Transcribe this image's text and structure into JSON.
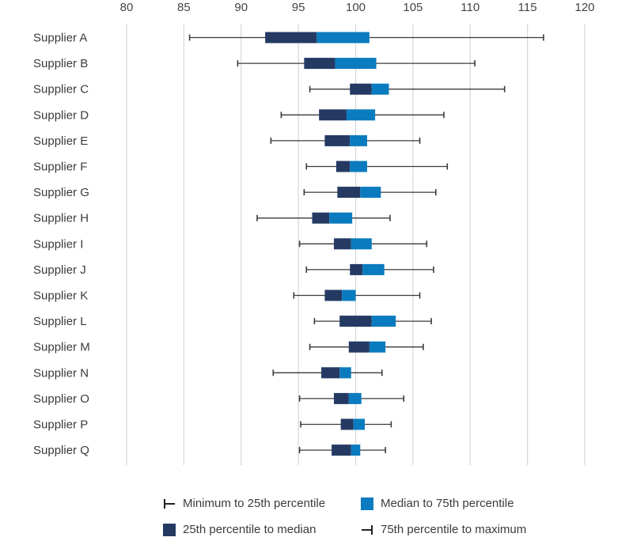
{
  "chart_data": {
    "type": "boxplot",
    "orientation": "horizontal",
    "title": "",
    "xlabel": "",
    "ylabel": "",
    "xlim": [
      80,
      120
    ],
    "x_ticks": [
      80,
      85,
      90,
      95,
      100,
      105,
      110,
      115,
      120
    ],
    "x_tick_labels": [
      "80",
      "85",
      "90",
      "95",
      "100",
      "105",
      "110",
      "115",
      "120"
    ],
    "x_axis_position": "top",
    "grid": "vertical",
    "categories": [
      "Supplier A",
      "Supplier B",
      "Supplier C",
      "Supplier D",
      "Supplier E",
      "Supplier F",
      "Supplier G",
      "Supplier H",
      "Supplier I",
      "Supplier J",
      "Supplier K",
      "Supplier L",
      "Supplier M",
      "Supplier N",
      "Supplier O",
      "Supplier P",
      "Supplier Q"
    ],
    "series": [
      {
        "name": "Supplier A",
        "min": 85.5,
        "q1": 92.1,
        "median": 96.6,
        "q3": 101.2,
        "max": 116.4
      },
      {
        "name": "Supplier B",
        "min": 89.7,
        "q1": 95.5,
        "median": 98.2,
        "q3": 101.8,
        "max": 110.4
      },
      {
        "name": "Supplier C",
        "min": 96.0,
        "q1": 99.5,
        "median": 101.4,
        "q3": 102.9,
        "max": 113.0
      },
      {
        "name": "Supplier D",
        "min": 93.5,
        "q1": 96.8,
        "median": 99.2,
        "q3": 101.7,
        "max": 107.7
      },
      {
        "name": "Supplier E",
        "min": 92.6,
        "q1": 97.3,
        "median": 99.5,
        "q3": 101.0,
        "max": 105.6
      },
      {
        "name": "Supplier F",
        "min": 95.7,
        "q1": 98.3,
        "median": 99.5,
        "q3": 101.0,
        "max": 108.0
      },
      {
        "name": "Supplier G",
        "min": 95.5,
        "q1": 98.4,
        "median": 100.4,
        "q3": 102.2,
        "max": 107.0
      },
      {
        "name": "Supplier H",
        "min": 91.4,
        "q1": 96.2,
        "median": 97.7,
        "q3": 99.7,
        "max": 103.0
      },
      {
        "name": "Supplier I",
        "min": 95.1,
        "q1": 98.1,
        "median": 99.6,
        "q3": 101.4,
        "max": 106.2
      },
      {
        "name": "Supplier J",
        "min": 95.7,
        "q1": 99.5,
        "median": 100.6,
        "q3": 102.5,
        "max": 106.8
      },
      {
        "name": "Supplier K",
        "min": 94.6,
        "q1": 97.3,
        "median": 98.8,
        "q3": 100.0,
        "max": 105.6
      },
      {
        "name": "Supplier L",
        "min": 96.4,
        "q1": 98.6,
        "median": 101.4,
        "q3": 103.5,
        "max": 106.6
      },
      {
        "name": "Supplier M",
        "min": 96.0,
        "q1": 99.4,
        "median": 101.2,
        "q3": 102.6,
        "max": 105.9
      },
      {
        "name": "Supplier N",
        "min": 92.8,
        "q1": 97.0,
        "median": 98.6,
        "q3": 99.6,
        "max": 102.3
      },
      {
        "name": "Supplier O",
        "min": 95.1,
        "q1": 98.1,
        "median": 99.4,
        "q3": 100.5,
        "max": 104.2
      },
      {
        "name": "Supplier P",
        "min": 95.2,
        "q1": 98.7,
        "median": 99.8,
        "q3": 100.8,
        "max": 103.1
      },
      {
        "name": "Supplier Q",
        "min": 95.1,
        "q1": 97.9,
        "median": 99.6,
        "q3": 100.4,
        "max": 102.6
      }
    ],
    "legend": {
      "placement": "bottom",
      "entries": [
        {
          "label": "Minimum to 25th percentile",
          "kind": "left-whisker"
        },
        {
          "label": "Median to 75th percentile",
          "kind": "box",
          "color": "#0a7bbf"
        },
        {
          "label": "25th percentile to median",
          "kind": "box",
          "color": "#243a63"
        },
        {
          "label": "75th percentile to maximum",
          "kind": "right-whisker"
        }
      ]
    },
    "colors": {
      "q1_to_median": "#243a63",
      "median_to_q3": "#0a7bbf",
      "whisker": "#3a3a3a",
      "grid": "#d6d6d6"
    }
  }
}
